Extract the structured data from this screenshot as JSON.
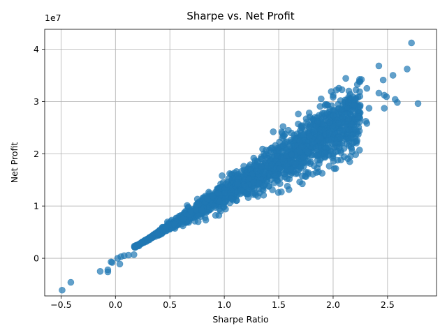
{
  "chart_data": {
    "type": "scatter",
    "title": "Sharpe vs. Net Profit",
    "xlabel": "Sharpe Ratio",
    "ylabel": "Net Profit",
    "y_offset_text": "1e7",
    "xlim": [
      -0.65,
      2.95
    ],
    "ylim": [
      -0.72,
      4.38
    ],
    "x_ticks": [
      -0.5,
      0.0,
      0.5,
      1.0,
      1.5,
      2.0,
      2.5
    ],
    "x_tick_labels": [
      "−0.5",
      "0.0",
      "0.5",
      "1.0",
      "1.5",
      "2.0",
      "2.5"
    ],
    "y_ticks": [
      0,
      1,
      2,
      3,
      4
    ],
    "y_tick_labels": [
      "0",
      "1",
      "2",
      "3",
      "4"
    ],
    "grid": true,
    "marker_color": "#1f77b4",
    "marker_alpha": 0.7,
    "y_unit_scale": 10000000,
    "series": [
      {
        "name": "",
        "points": [
          [
            -0.49,
            -0.61
          ],
          [
            -0.41,
            -0.46
          ],
          [
            -0.14,
            -0.25
          ],
          [
            -0.07,
            -0.22
          ],
          [
            -0.07,
            -0.26
          ],
          [
            -0.04,
            -0.07
          ],
          [
            -0.03,
            -0.08
          ],
          [
            0.04,
            -0.11
          ],
          [
            0.02,
            0.0
          ],
          [
            0.05,
            0.03
          ],
          [
            0.08,
            0.05
          ],
          [
            0.12,
            0.06
          ],
          [
            0.17,
            0.07
          ],
          [
            2.72,
            4.12
          ],
          [
            2.42,
            3.68
          ],
          [
            2.68,
            3.62
          ],
          [
            2.55,
            3.5
          ],
          [
            2.26,
            3.42
          ],
          [
            2.24,
            3.38
          ],
          [
            2.46,
            3.41
          ],
          [
            2.31,
            3.25
          ],
          [
            2.21,
            3.22
          ],
          [
            2.03,
            3.22
          ],
          [
            2.42,
            3.16
          ],
          [
            2.47,
            3.12
          ],
          [
            2.49,
            3.09
          ],
          [
            2.57,
            3.04
          ],
          [
            2.59,
            2.98
          ],
          [
            2.78,
            2.96
          ],
          [
            2.47,
            2.87
          ],
          [
            2.33,
            2.87
          ],
          [
            2.3,
            2.62
          ],
          [
            2.31,
            2.58
          ],
          [
            1.89,
            3.05
          ],
          [
            1.95,
            2.93
          ],
          [
            2.0,
            3.08
          ],
          [
            2.09,
            2.93
          ],
          [
            2.14,
            2.98
          ],
          [
            1.58,
            1.38
          ],
          [
            0.83,
            0.73
          ],
          [
            0.95,
            0.82
          ],
          [
            0.92,
            0.82
          ],
          [
            1.12,
            1.42
          ],
          [
            1.32,
            1.42
          ],
          [
            1.36,
            1.39
          ],
          [
            1.47,
            1.58
          ],
          [
            1.51,
            1.72
          ],
          [
            1.62,
            1.98
          ],
          [
            1.88,
            2.3
          ],
          [
            1.92,
            2.0
          ],
          [
            2.1,
            2.1
          ],
          [
            2.18,
            2.2
          ],
          [
            2.22,
            2.25
          ],
          [
            1.72,
            2.52
          ],
          [
            1.45,
            2.42
          ],
          [
            1.54,
            2.52
          ],
          [
            1.68,
            2.76
          ],
          [
            1.78,
            2.78
          ],
          [
            1.05,
            1.62
          ],
          [
            0.98,
            1.58
          ],
          [
            0.76,
            0.7
          ],
          [
            0.73,
            0.71
          ],
          [
            0.62,
            0.62
          ]
        ],
        "band": {
          "x_range": [
            0.17,
            2.25
          ],
          "slope": 1.22,
          "intercept": 0.0,
          "spread": 0.16,
          "count": 1800
        }
      }
    ]
  }
}
